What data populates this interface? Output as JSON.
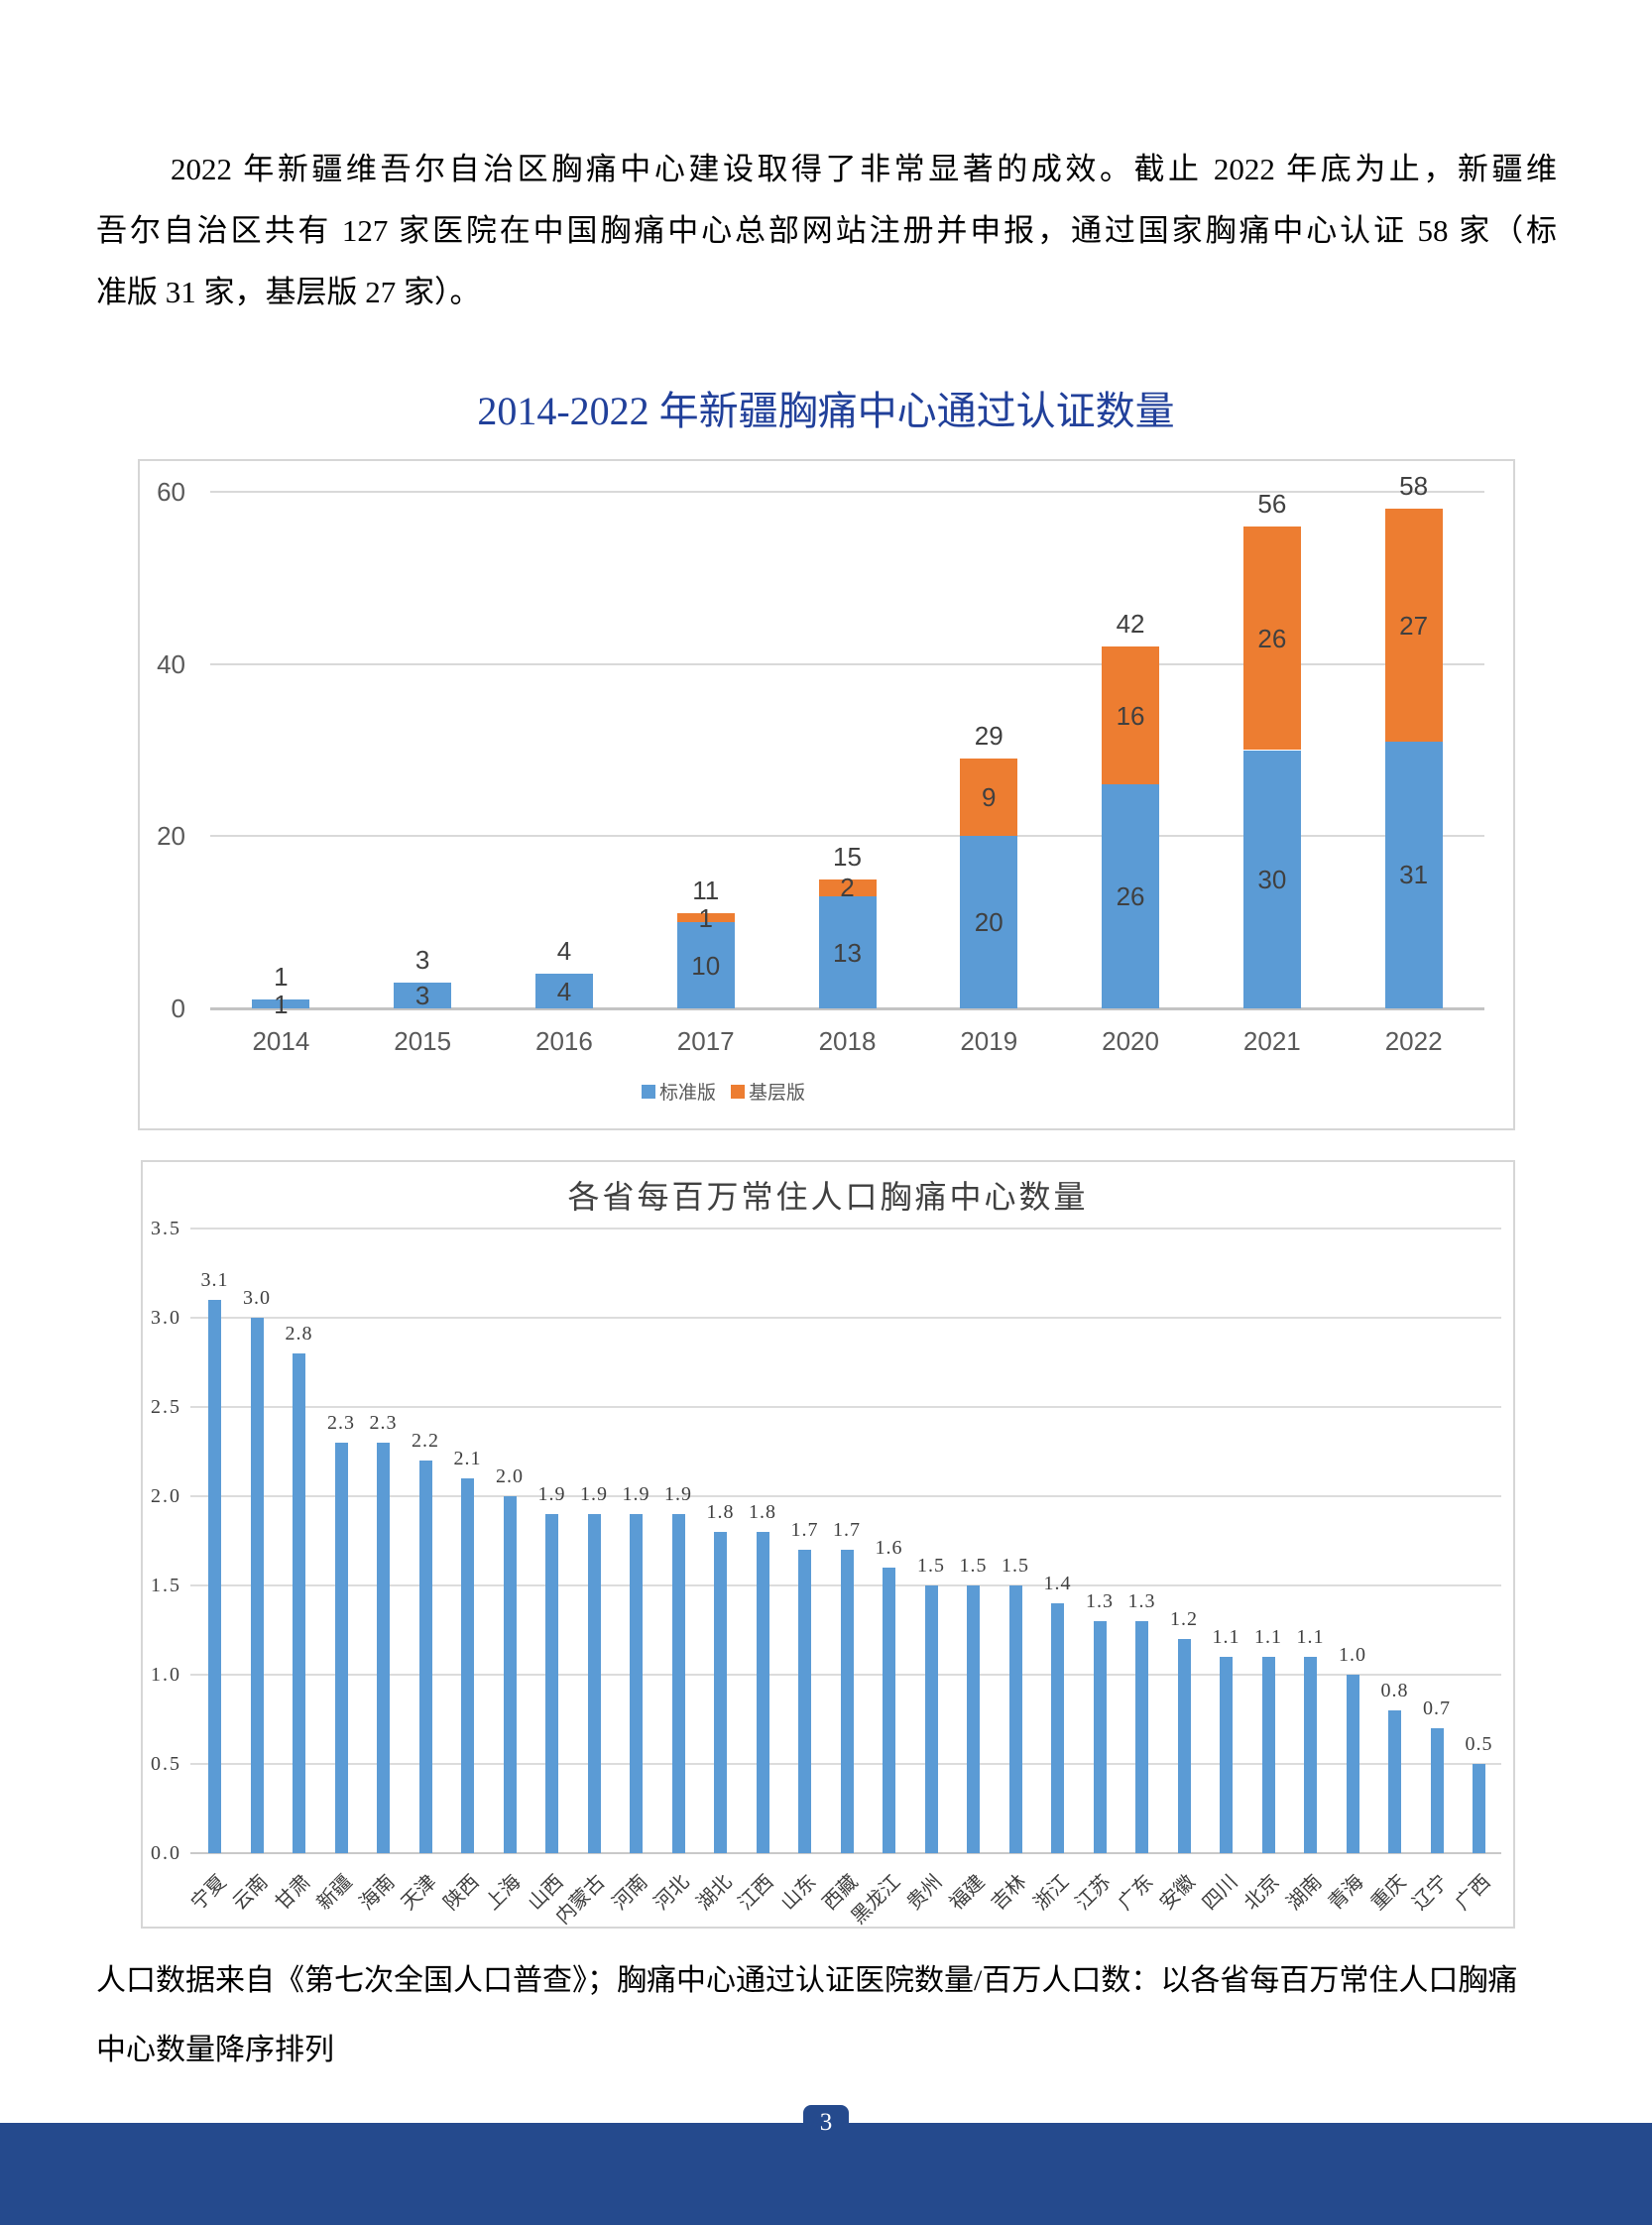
{
  "paragraph": {
    "lines": [
      "2022 年新疆维吾尔自治区胸痛中心建设取得了非常显著的成效。截止 2022 年底为止，新疆维",
      "吾尔自治区共有 127 家医院在中国胸痛中心总部网站注册并申报，通过国家胸痛中心认证 58 家（标",
      "准版 31 家，基层版 27 家）。"
    ]
  },
  "footnote": {
    "lines": [
      "人口数据来自《第七次全国人口普查》；胸痛中心通过认证医院数量/百万人口数：以各省每百万常住人口胸痛",
      "中心数量降序排列"
    ]
  },
  "page_number": "3",
  "colors": {
    "title_blue": "#21409A",
    "footer_blue": "#254A8D",
    "bar_blue": "#5B9BD5",
    "bar_orange": "#ED7D31"
  },
  "chart_data": [
    {
      "type": "bar",
      "stacked": true,
      "title": "2014-2022 年新疆胸痛中心通过认证数量",
      "categories": [
        "2014",
        "2015",
        "2016",
        "2017",
        "2018",
        "2019",
        "2020",
        "2021",
        "2022"
      ],
      "series": [
        {
          "name": "标准版",
          "color": "#5B9BD5",
          "values": [
            1,
            3,
            4,
            10,
            13,
            20,
            26,
            30,
            31
          ]
        },
        {
          "name": "基层版",
          "color": "#ED7D31",
          "values": [
            0,
            0,
            0,
            1,
            2,
            9,
            16,
            26,
            27
          ]
        }
      ],
      "totals": [
        1,
        3,
        4,
        11,
        15,
        29,
        42,
        56,
        58
      ],
      "ylim": [
        0,
        60
      ],
      "yticks": [
        0,
        20,
        40,
        60
      ],
      "grid": true,
      "legend_position": "bottom"
    },
    {
      "type": "bar",
      "title": "各省每百万常住人口胸痛中心数量",
      "categories": [
        "宁夏",
        "云南",
        "甘肃",
        "新疆",
        "海南",
        "天津",
        "陕西",
        "上海",
        "山西",
        "内蒙古",
        "河南",
        "河北",
        "湖北",
        "江西",
        "山东",
        "西藏",
        "黑龙江",
        "贵州",
        "福建",
        "吉林",
        "浙江",
        "江苏",
        "广东",
        "安徽",
        "四川",
        "北京",
        "湖南",
        "青海",
        "重庆",
        "辽宁",
        "广西"
      ],
      "values": [
        3.1,
        3.0,
        2.8,
        2.3,
        2.3,
        2.2,
        2.1,
        2.0,
        1.9,
        1.9,
        1.9,
        1.9,
        1.8,
        1.8,
        1.7,
        1.7,
        1.6,
        1.5,
        1.5,
        1.5,
        1.4,
        1.3,
        1.3,
        1.2,
        1.1,
        1.1,
        1.1,
        1.0,
        0.8,
        0.7,
        0.5
      ],
      "bar_color": "#5B9BD5",
      "ylim": [
        0,
        3.5
      ],
      "yticks": [
        0,
        0.5,
        1,
        1.5,
        2,
        2.5,
        3,
        3.5
      ],
      "grid": true
    }
  ]
}
